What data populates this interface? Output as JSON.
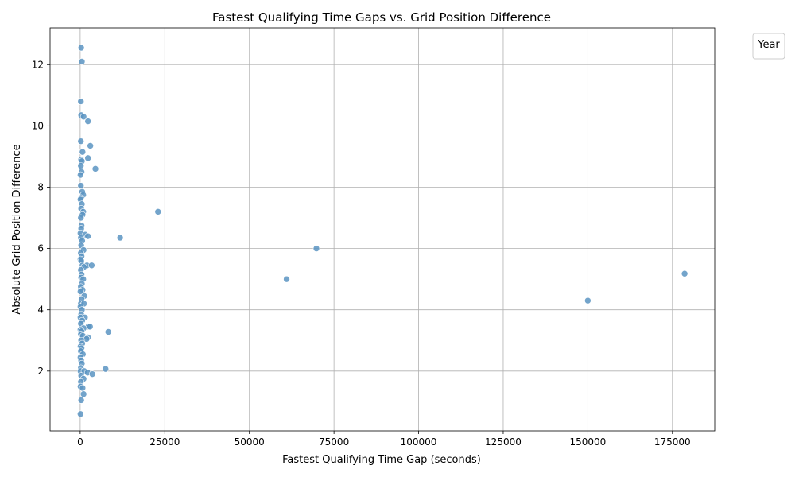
{
  "chart_data": {
    "type": "scatter",
    "title": "Fastest Qualifying Time Gaps vs. Grid Position Difference",
    "xlabel": "Fastest Qualifying Time Gap (seconds)",
    "ylabel": "Absolute Grid Position Difference",
    "xlim": [
      -8900,
      187500
    ],
    "ylim": [
      0.05,
      13.2
    ],
    "xticks": [
      0,
      25000,
      50000,
      75000,
      100000,
      125000,
      150000,
      175000
    ],
    "xtick_labels": [
      "0",
      "25000",
      "50000",
      "75000",
      "100000",
      "125000",
      "150000",
      "175000"
    ],
    "yticks": [
      2,
      4,
      6,
      8,
      10,
      12
    ],
    "ytick_labels": [
      "2",
      "4",
      "6",
      "8",
      "10",
      "12"
    ],
    "grid": true,
    "legend": {
      "title": "Year",
      "placement": "upper-right-outside",
      "entries": []
    },
    "color": "#5b94c2",
    "points": [
      {
        "x": 300,
        "y": 12.55
      },
      {
        "x": 500,
        "y": 12.1
      },
      {
        "x": 200,
        "y": 10.8
      },
      {
        "x": 300,
        "y": 10.35
      },
      {
        "x": 1000,
        "y": 10.3
      },
      {
        "x": 2300,
        "y": 10.15
      },
      {
        "x": 200,
        "y": 9.5
      },
      {
        "x": 3000,
        "y": 9.35
      },
      {
        "x": 700,
        "y": 9.15
      },
      {
        "x": 2300,
        "y": 8.95
      },
      {
        "x": 300,
        "y": 8.9
      },
      {
        "x": 500,
        "y": 8.85
      },
      {
        "x": 200,
        "y": 8.7
      },
      {
        "x": 4500,
        "y": 8.6
      },
      {
        "x": 400,
        "y": 8.5
      },
      {
        "x": 100,
        "y": 8.4
      },
      {
        "x": 200,
        "y": 8.05
      },
      {
        "x": 600,
        "y": 7.85
      },
      {
        "x": 900,
        "y": 7.75
      },
      {
        "x": 300,
        "y": 7.65
      },
      {
        "x": 100,
        "y": 7.6
      },
      {
        "x": 500,
        "y": 7.45
      },
      {
        "x": 300,
        "y": 7.3
      },
      {
        "x": 900,
        "y": 7.2
      },
      {
        "x": 23000,
        "y": 7.2
      },
      {
        "x": 700,
        "y": 7.1
      },
      {
        "x": 200,
        "y": 7.0
      },
      {
        "x": 400,
        "y": 6.75
      },
      {
        "x": 300,
        "y": 6.65
      },
      {
        "x": 100,
        "y": 6.5
      },
      {
        "x": 1500,
        "y": 6.45
      },
      {
        "x": 2300,
        "y": 6.4
      },
      {
        "x": 200,
        "y": 6.35
      },
      {
        "x": 11800,
        "y": 6.35
      },
      {
        "x": 600,
        "y": 6.25
      },
      {
        "x": 300,
        "y": 6.1
      },
      {
        "x": 69800,
        "y": 6.0
      },
      {
        "x": 1000,
        "y": 5.95
      },
      {
        "x": 200,
        "y": 5.85
      },
      {
        "x": 400,
        "y": 5.75
      },
      {
        "x": 100,
        "y": 5.65
      },
      {
        "x": 300,
        "y": 5.6
      },
      {
        "x": 700,
        "y": 5.45
      },
      {
        "x": 2000,
        "y": 5.45
      },
      {
        "x": 3400,
        "y": 5.45
      },
      {
        "x": 1100,
        "y": 5.4
      },
      {
        "x": 200,
        "y": 5.3
      },
      {
        "x": 400,
        "y": 5.15
      },
      {
        "x": 178600,
        "y": 5.18
      },
      {
        "x": 300,
        "y": 5.05
      },
      {
        "x": 900,
        "y": 5.0
      },
      {
        "x": 61000,
        "y": 5.0
      },
      {
        "x": 500,
        "y": 4.85
      },
      {
        "x": 200,
        "y": 4.75
      },
      {
        "x": 700,
        "y": 4.65
      },
      {
        "x": 100,
        "y": 4.6
      },
      {
        "x": 1200,
        "y": 4.45
      },
      {
        "x": 400,
        "y": 4.35
      },
      {
        "x": 150000,
        "y": 4.3
      },
      {
        "x": 200,
        "y": 4.2
      },
      {
        "x": 1100,
        "y": 4.2
      },
      {
        "x": 100,
        "y": 4.1
      },
      {
        "x": 500,
        "y": 4.0
      },
      {
        "x": 300,
        "y": 3.85
      },
      {
        "x": 1400,
        "y": 3.75
      },
      {
        "x": 100,
        "y": 3.75
      },
      {
        "x": 600,
        "y": 3.65
      },
      {
        "x": 200,
        "y": 3.55
      },
      {
        "x": 2400,
        "y": 3.45
      },
      {
        "x": 2900,
        "y": 3.45
      },
      {
        "x": 1000,
        "y": 3.4
      },
      {
        "x": 100,
        "y": 3.35
      },
      {
        "x": 400,
        "y": 3.3
      },
      {
        "x": 8300,
        "y": 3.28
      },
      {
        "x": 200,
        "y": 3.2
      },
      {
        "x": 800,
        "y": 3.15
      },
      {
        "x": 2300,
        "y": 3.1
      },
      {
        "x": 1900,
        "y": 3.05
      },
      {
        "x": 300,
        "y": 3.0
      },
      {
        "x": 600,
        "y": 2.9
      },
      {
        "x": 100,
        "y": 2.8
      },
      {
        "x": 400,
        "y": 2.75
      },
      {
        "x": 200,
        "y": 2.65
      },
      {
        "x": 800,
        "y": 2.55
      },
      {
        "x": 100,
        "y": 2.45
      },
      {
        "x": 300,
        "y": 2.35
      },
      {
        "x": 500,
        "y": 2.25
      },
      {
        "x": 200,
        "y": 2.1
      },
      {
        "x": 7500,
        "y": 2.07
      },
      {
        "x": 100,
        "y": 2.0
      },
      {
        "x": 1200,
        "y": 2.0
      },
      {
        "x": 2200,
        "y": 1.95
      },
      {
        "x": 3600,
        "y": 1.9
      },
      {
        "x": 300,
        "y": 1.85
      },
      {
        "x": 1000,
        "y": 1.75
      },
      {
        "x": 200,
        "y": 1.65
      },
      {
        "x": 100,
        "y": 1.5
      },
      {
        "x": 700,
        "y": 1.45
      },
      {
        "x": 1000,
        "y": 1.25
      },
      {
        "x": 300,
        "y": 1.05
      },
      {
        "x": 100,
        "y": 0.6
      }
    ]
  }
}
